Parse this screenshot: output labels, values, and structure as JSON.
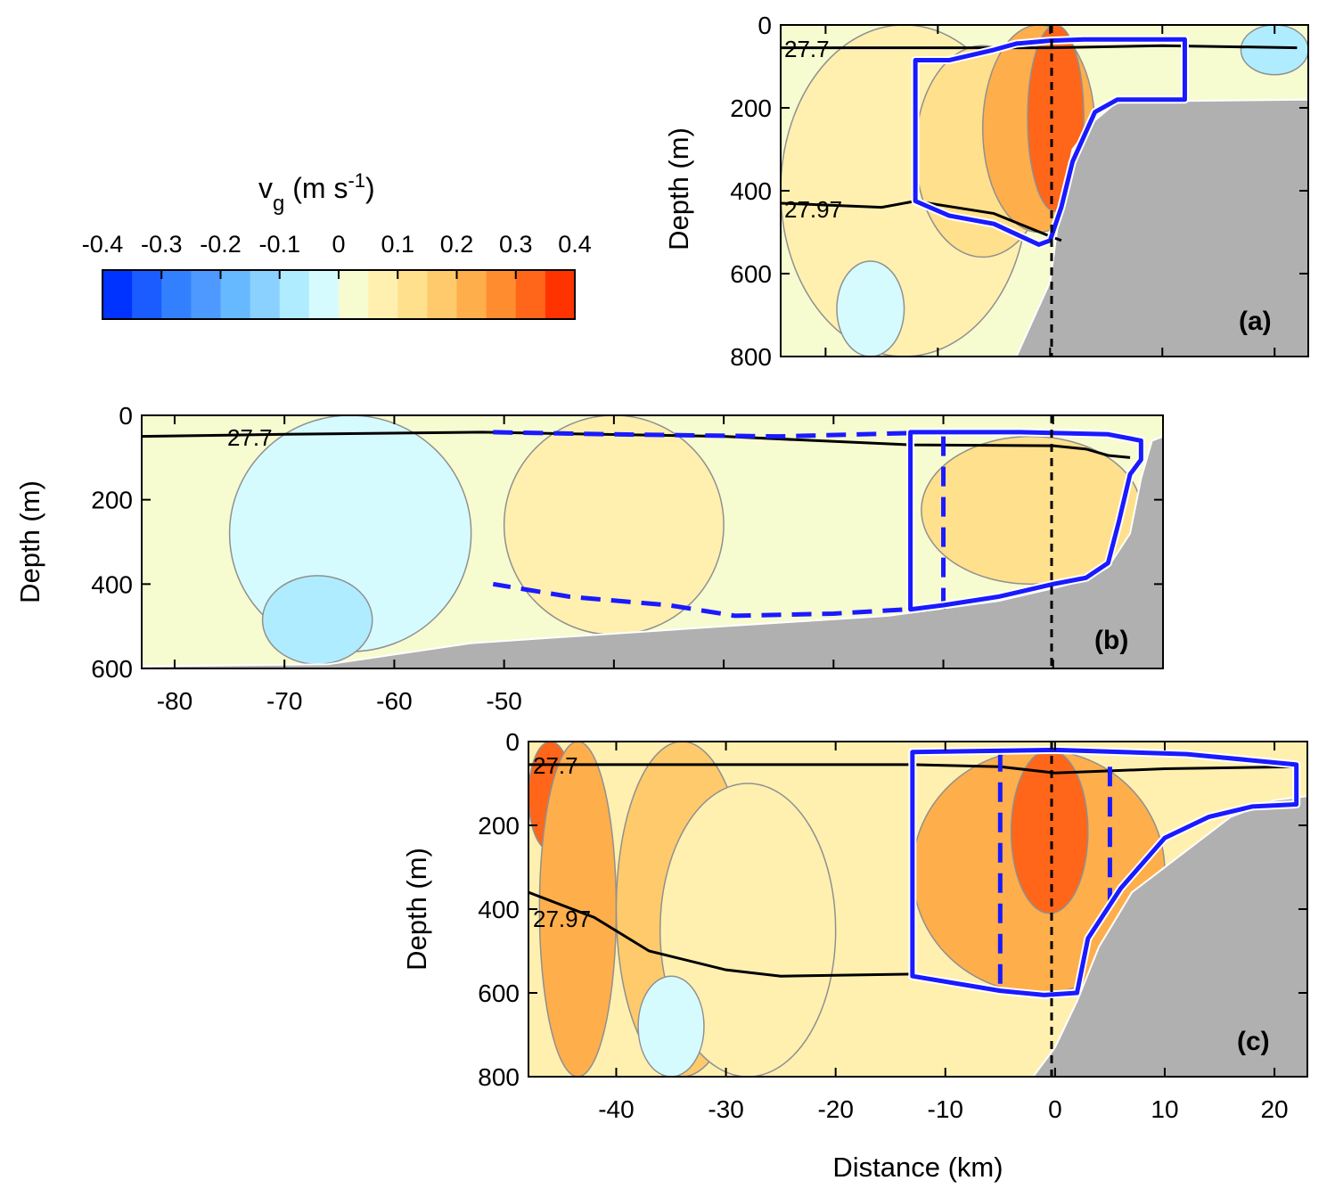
{
  "chart_data": [
    {
      "type": "contour",
      "panel": "(a)",
      "xlabel": "",
      "ylabel": "Depth (m)",
      "xlim": [
        -24,
        23
      ],
      "ylim": [
        800,
        0
      ],
      "yticks": [
        0,
        200,
        400,
        600,
        800
      ],
      "xticks": [
        -20,
        -10,
        0,
        10,
        20
      ],
      "xticklabels_shown": false,
      "bathymetry": [
        [
          -3,
          800
        ],
        [
          -2,
          740
        ],
        [
          0,
          620
        ],
        [
          1,
          420
        ],
        [
          2,
          300
        ],
        [
          4,
          230
        ],
        [
          6,
          185
        ],
        [
          23,
          180
        ]
      ],
      "isopycnals": [
        {
          "label": "27.7",
          "points": [
            [
              -24,
              55
            ],
            [
              -10,
              55
            ],
            [
              0,
              55
            ],
            [
              10,
              50
            ],
            [
              22,
              55
            ]
          ]
        },
        {
          "label": "27.97",
          "points": [
            [
              -24,
              430
            ],
            [
              -15,
              440
            ],
            [
              -12,
              425
            ],
            [
              -5,
              455
            ],
            [
              0,
              510
            ],
            [
              1,
              520
            ]
          ]
        }
      ],
      "box_solid": [
        [
          -12,
          85
        ],
        [
          -9,
          85
        ],
        [
          -5,
          60
        ],
        [
          -3,
          45
        ],
        [
          0,
          38
        ],
        [
          3,
          35
        ],
        [
          12,
          35
        ],
        [
          12,
          180
        ],
        [
          6,
          180
        ],
        [
          4,
          210
        ],
        [
          2,
          330
        ],
        [
          1,
          440
        ],
        [
          0,
          520
        ],
        [
          -1,
          530
        ],
        [
          -5,
          480
        ],
        [
          -9,
          460
        ],
        [
          -12,
          425
        ]
      ],
      "box_dashed": [],
      "velocity_regions": [
        {
          "vg": 0.05,
          "x": [
            -24,
            -2
          ],
          "depth": [
            0,
            800
          ]
        },
        {
          "vg": 0.1,
          "x": [
            -12,
            0
          ],
          "depth": [
            50,
            560
          ]
        },
        {
          "vg": 0.2,
          "x": [
            -6,
            4
          ],
          "depth": [
            0,
            500
          ]
        },
        {
          "vg": 0.3,
          "x": [
            -2,
            3
          ],
          "depth": [
            0,
            450
          ]
        },
        {
          "vg": -0.05,
          "x": [
            -19,
            -13
          ],
          "depth": [
            570,
            800
          ]
        },
        {
          "vg": -0.1,
          "x": [
            17,
            23
          ],
          "depth": [
            0,
            120
          ]
        }
      ],
      "section_origin_km": 0
    },
    {
      "type": "contour",
      "panel": "(b)",
      "xlabel": "",
      "ylabel": "Depth (m)",
      "xlim": [
        -83,
        10
      ],
      "ylim": [
        600,
        0
      ],
      "yticks": [
        0,
        200,
        400,
        600
      ],
      "xticks": [
        -80,
        -70,
        -60,
        -50
      ],
      "xticklabels": [
        "-80",
        "-70",
        "-60",
        "-50"
      ],
      "bathymetry": [
        [
          -83,
          595
        ],
        [
          -66,
          590
        ],
        [
          -53,
          540
        ],
        [
          -30,
          500
        ],
        [
          -15,
          475
        ],
        [
          -5,
          440
        ],
        [
          0,
          410
        ],
        [
          3,
          390
        ],
        [
          5,
          360
        ],
        [
          7,
          280
        ],
        [
          8,
          150
        ],
        [
          9,
          60
        ],
        [
          10,
          50
        ]
      ],
      "isopycnals": [
        {
          "label": "27.7",
          "points": [
            [
              -83,
              50
            ],
            [
              -70,
              45
            ],
            [
              -52,
              40
            ],
            [
              -30,
              50
            ],
            [
              -13,
              70
            ],
            [
              0,
              72
            ],
            [
              3,
              80
            ],
            [
              5,
              95
            ],
            [
              7,
              100
            ]
          ]
        }
      ],
      "box_solid": [
        [
          -13,
          40
        ],
        [
          -3,
          40
        ],
        [
          5,
          45
        ],
        [
          8,
          60
        ],
        [
          8,
          105
        ],
        [
          7,
          140
        ],
        [
          6,
          250
        ],
        [
          5,
          350
        ],
        [
          3,
          385
        ],
        [
          0,
          400
        ],
        [
          -5,
          430
        ],
        [
          -10,
          450
        ],
        [
          -13,
          460
        ]
      ],
      "box_dashed": [
        [
          -51,
          40
        ],
        [
          -40,
          45
        ],
        [
          -25,
          50
        ],
        [
          -10,
          40
        ],
        [
          -10,
          455
        ],
        [
          -20,
          470
        ],
        [
          -29,
          475
        ],
        [
          -35,
          450
        ],
        [
          -44,
          430
        ],
        [
          -51,
          400
        ]
      ],
      "velocity_regions": [
        {
          "vg": -0.05,
          "x": [
            -75,
            -53
          ],
          "depth": [
            0,
            560
          ]
        },
        {
          "vg": -0.1,
          "x": [
            -72,
            -62
          ],
          "depth": [
            380,
            590
          ]
        },
        {
          "vg": 0.05,
          "x": [
            -50,
            -30
          ],
          "depth": [
            0,
            520
          ]
        },
        {
          "vg": 0.1,
          "x": [
            -12,
            8
          ],
          "depth": [
            50,
            400
          ]
        }
      ],
      "section_origin_km": 0
    },
    {
      "type": "contour",
      "panel": "(c)",
      "xlabel": "Distance (km)",
      "ylabel": "Depth (m)",
      "xlim": [
        -48,
        23
      ],
      "ylim": [
        800,
        0
      ],
      "yticks": [
        0,
        200,
        400,
        600,
        800
      ],
      "xticks": [
        -40,
        -30,
        -20,
        -10,
        0,
        10,
        20
      ],
      "xticklabels": [
        "-40",
        "-30",
        "-20",
        "-10",
        "0",
        "10",
        "20"
      ],
      "bathymetry": [
        [
          -2,
          800
        ],
        [
          0,
          730
        ],
        [
          2,
          620
        ],
        [
          4,
          490
        ],
        [
          7,
          360
        ],
        [
          12,
          260
        ],
        [
          16,
          180
        ],
        [
          20,
          140
        ],
        [
          23,
          130
        ]
      ],
      "isopycnals": [
        {
          "label": "27.7",
          "points": [
            [
              -48,
              55
            ],
            [
              -30,
              55
            ],
            [
              -13,
              55
            ],
            [
              -5,
              60
            ],
            [
              0,
              75
            ],
            [
              10,
              65
            ],
            [
              22,
              60
            ]
          ]
        },
        {
          "label": "27.97",
          "points": [
            [
              -48,
              360
            ],
            [
              -42,
              420
            ],
            [
              -37,
              500
            ],
            [
              -30,
              545
            ],
            [
              -25,
              560
            ],
            [
              -13,
              555
            ]
          ]
        }
      ],
      "box_solid": [
        [
          -13,
          25
        ],
        [
          0,
          20
        ],
        [
          12,
          30
        ],
        [
          22,
          55
        ],
        [
          22,
          150
        ],
        [
          18,
          155
        ],
        [
          14,
          180
        ],
        [
          10,
          230
        ],
        [
          6,
          350
        ],
        [
          3,
          470
        ],
        [
          2,
          600
        ],
        [
          -1,
          605
        ],
        [
          -5,
          595
        ],
        [
          -13,
          560
        ]
      ],
      "box_dashed_lines": [
        [
          [
            -5,
            25
          ],
          [
            -5,
            595
          ]
        ],
        [
          [
            5,
            60
          ],
          [
            5,
            400
          ]
        ]
      ],
      "velocity_regions": [
        {
          "vg": 0.3,
          "x": [
            -48,
            -44
          ],
          "depth": [
            0,
            260
          ]
        },
        {
          "vg": 0.2,
          "x": [
            -47,
            -40
          ],
          "depth": [
            0,
            800
          ]
        },
        {
          "vg": 0.15,
          "x": [
            -40,
            -28
          ],
          "depth": [
            0,
            800
          ]
        },
        {
          "vg": 0.05,
          "x": [
            -36,
            -20
          ],
          "depth": [
            100,
            800
          ]
        },
        {
          "vg": -0.05,
          "x": [
            -38,
            -32
          ],
          "depth": [
            560,
            800
          ]
        },
        {
          "vg": 0.2,
          "x": [
            -13,
            10
          ],
          "depth": [
            20,
            600
          ]
        },
        {
          "vg": 0.3,
          "x": [
            -4,
            3
          ],
          "depth": [
            20,
            410
          ]
        }
      ],
      "section_origin_km": 0
    }
  ],
  "colorbar": {
    "title_main": "v",
    "title_sub": "g",
    "title_units": " (m s",
    "title_sup": "-1",
    "title_close": ")",
    "tick_labels": [
      "-0.4",
      "-0.3",
      "-0.2",
      "-0.1",
      "0",
      "0.1",
      "0.2",
      "0.3",
      "0.4"
    ],
    "levels": [
      -0.4,
      -0.35,
      -0.3,
      -0.25,
      -0.2,
      -0.15,
      -0.1,
      -0.05,
      0,
      0.05,
      0.1,
      0.15,
      0.2,
      0.25,
      0.3,
      0.35,
      0.4
    ],
    "colors": [
      "#0033ff",
      "#1a5cff",
      "#3380ff",
      "#4d99ff",
      "#66b8ff",
      "#8ad1ff",
      "#b0ecff",
      "#d6fbff",
      "#f7fbd0",
      "#fff0b0",
      "#ffe08c",
      "#ffca6b",
      "#ffae4c",
      "#ff8c2e",
      "#ff6619",
      "#ff3300"
    ]
  },
  "colors": {
    "bathymetry": "#b0b0b0",
    "box": "#1a1aff",
    "contour_line": "#909090",
    "isopycnal": "#000000"
  },
  "isopycnal_labels": {
    "a1": "27.7",
    "a2": "27.97",
    "b1": "27.7",
    "c1": "27.7",
    "c2": "27.97"
  },
  "axis_labels": {
    "depth": "Depth (m)",
    "distance": "Distance (km)"
  },
  "panel_labels": {
    "a": "(a)",
    "b": "(b)",
    "c": "(c)"
  }
}
